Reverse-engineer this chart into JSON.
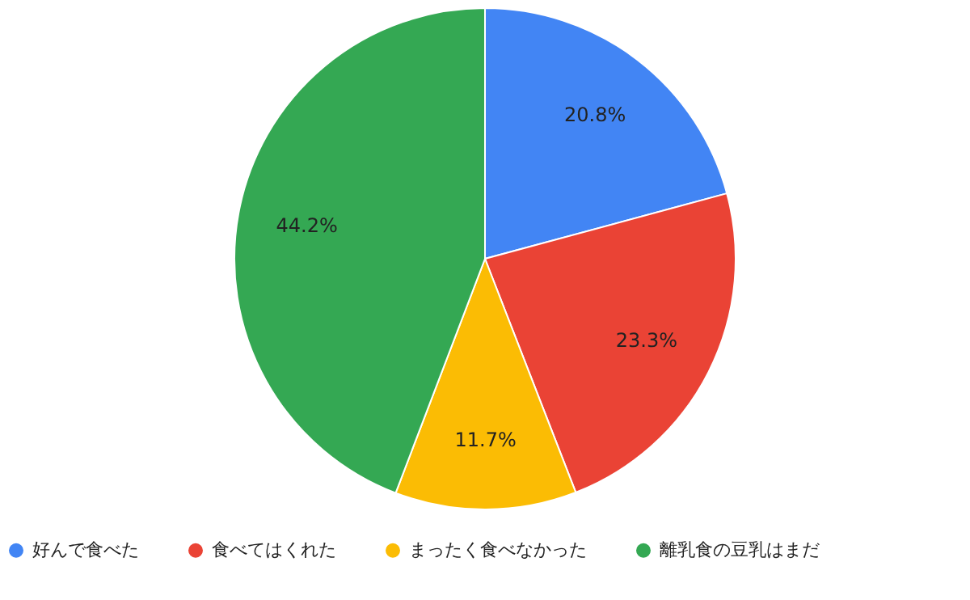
{
  "chart_data": {
    "type": "pie",
    "categories": [
      "好んで食べた",
      "食べてはくれた",
      "まったく食べなかった",
      "離乳食の豆乳はまだ"
    ],
    "values": [
      20.8,
      23.3,
      11.7,
      44.2
    ],
    "colors": [
      "#4285f4",
      "#ea4335",
      "#fbbc04",
      "#34a853"
    ],
    "value_labels": [
      "20.8%",
      "23.3%",
      "11.7%",
      "44.2%"
    ],
    "legend": "bottom"
  }
}
